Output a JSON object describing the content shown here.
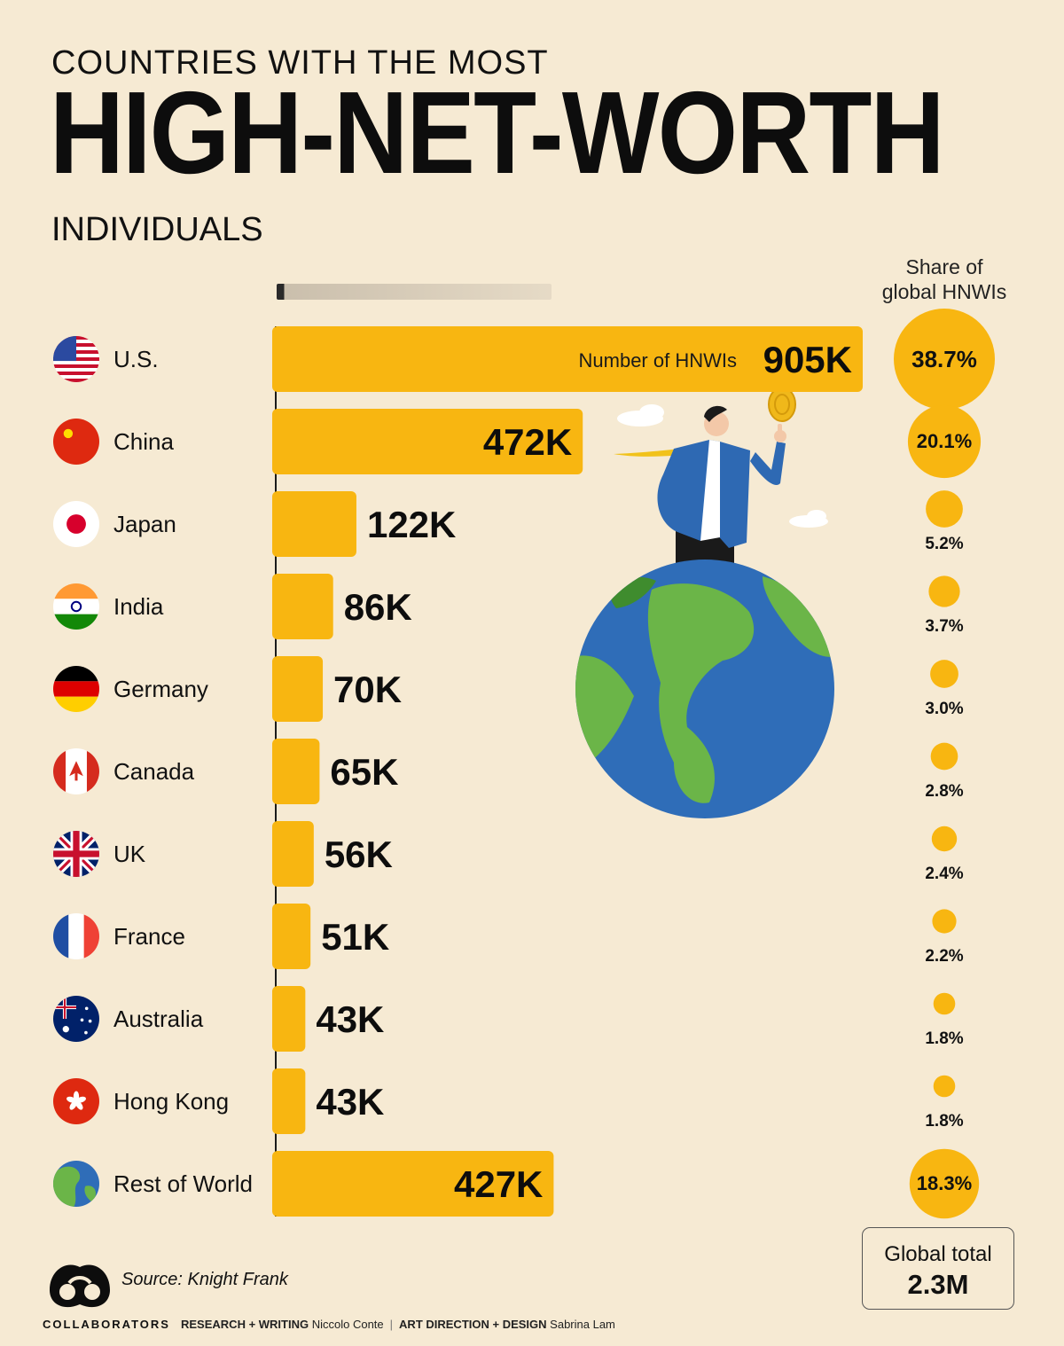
{
  "title": {
    "top": "COUNTRIES WITH THE MOST",
    "main": "HIGH-NET-WORTH",
    "sub": "INDIVIDUALS"
  },
  "share_header": [
    "Share of",
    "global HNWIs"
  ],
  "bar_inline_label": "Number of HNWIs",
  "source": "Source: Knight Frank",
  "brand": "COLLABORATORS",
  "credits": {
    "research_label": "RESEARCH + WRITING",
    "research_name": "Niccolo Conte",
    "design_label": "ART DIRECTION + DESIGN",
    "design_name": "Sabrina Lam"
  },
  "global_total": {
    "label": "Global total",
    "value": "2.3M"
  },
  "colors": {
    "bar": "#f8b611",
    "background": "#f6ead3",
    "text": "#111111"
  },
  "chart_data": {
    "type": "bar",
    "orientation": "horizontal",
    "title": "COUNTRIES WITH THE MOST HIGH-NET-WORTH INDIVIDUALS",
    "categories": [
      "U.S.",
      "China",
      "Japan",
      "India",
      "Germany",
      "Canada",
      "UK",
      "France",
      "Australia",
      "Hong Kong",
      "Rest of World"
    ],
    "flag_icons": [
      "us-flag-icon",
      "china-flag-icon",
      "japan-flag-icon",
      "india-flag-icon",
      "germany-flag-icon",
      "canada-flag-icon",
      "uk-flag-icon",
      "france-flag-icon",
      "australia-flag-icon",
      "hong-kong-flag-icon",
      "globe-icon"
    ],
    "series": [
      {
        "name": "Number of HNWIs",
        "values": [
          905000,
          472000,
          122000,
          86000,
          70000,
          65000,
          56000,
          51000,
          43000,
          43000,
          427000
        ],
        "labels": [
          "905K",
          "472K",
          "122K",
          "86K",
          "70K",
          "65K",
          "56K",
          "51K",
          "43K",
          "43K",
          "427K"
        ]
      },
      {
        "name": "Share of global HNWIs",
        "values": [
          38.7,
          20.1,
          5.2,
          3.7,
          3.0,
          2.8,
          2.4,
          2.2,
          1.8,
          1.8,
          18.3
        ],
        "labels": [
          "38.7%",
          "20.1%",
          "5.2%",
          "3.7%",
          "3.0%",
          "2.8%",
          "2.4%",
          "2.2%",
          "1.8%",
          "1.8%",
          "18.3%"
        ]
      }
    ],
    "xlim": [
      0,
      905000
    ],
    "grid": false,
    "legend": "none"
  }
}
